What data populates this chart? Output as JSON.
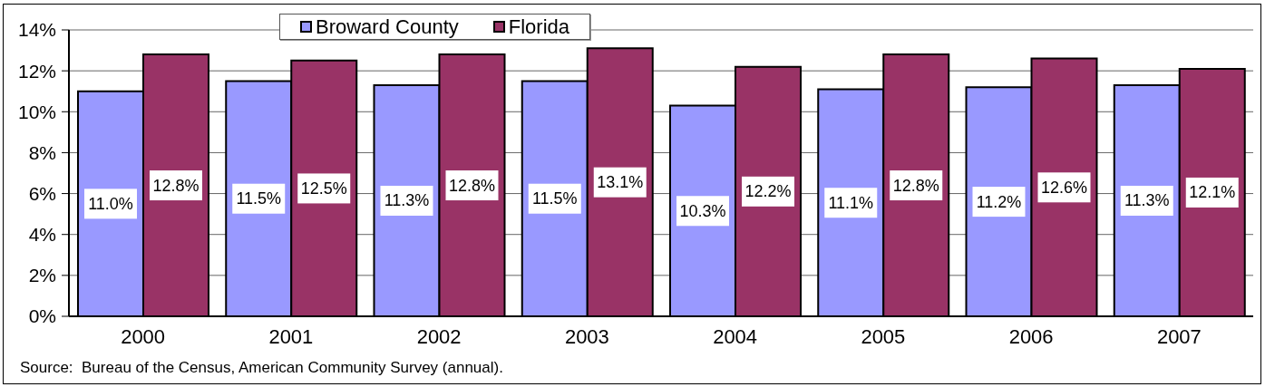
{
  "chart_data": {
    "type": "bar",
    "categories": [
      "2000",
      "2001",
      "2002",
      "2003",
      "2004",
      "2005",
      "2006",
      "2007"
    ],
    "series": [
      {
        "name": "Broward County",
        "color": "#9999ff",
        "values": [
          11.0,
          11.5,
          11.3,
          11.5,
          10.3,
          11.1,
          11.2,
          11.3
        ],
        "value_labels": [
          "11.0%",
          "11.5%",
          "11.3%",
          "11.5%",
          "10.3%",
          "11.1%",
          "11.2%",
          "11.3%"
        ]
      },
      {
        "name": "Florida",
        "color": "#993366",
        "values": [
          12.8,
          12.5,
          12.8,
          13.1,
          12.2,
          12.8,
          12.6,
          12.1
        ],
        "value_labels": [
          "12.8%",
          "12.5%",
          "12.8%",
          "13.1%",
          "12.2%",
          "12.8%",
          "12.6%",
          "12.1%"
        ]
      }
    ],
    "ylim": [
      0,
      14
    ],
    "yticks": [
      {
        "value": 0,
        "label": "0%"
      },
      {
        "value": 2,
        "label": "2%"
      },
      {
        "value": 4,
        "label": "4%"
      },
      {
        "value": 6,
        "label": "6%"
      },
      {
        "value": 8,
        "label": "8%"
      },
      {
        "value": 10,
        "label": "10%"
      },
      {
        "value": 12,
        "label": "12%"
      },
      {
        "value": 14,
        "label": "14%"
      }
    ],
    "grid": "y",
    "legend": "top",
    "annotations": [
      "Source:  Bureau of the Census, American Community Survey (annual)."
    ]
  }
}
